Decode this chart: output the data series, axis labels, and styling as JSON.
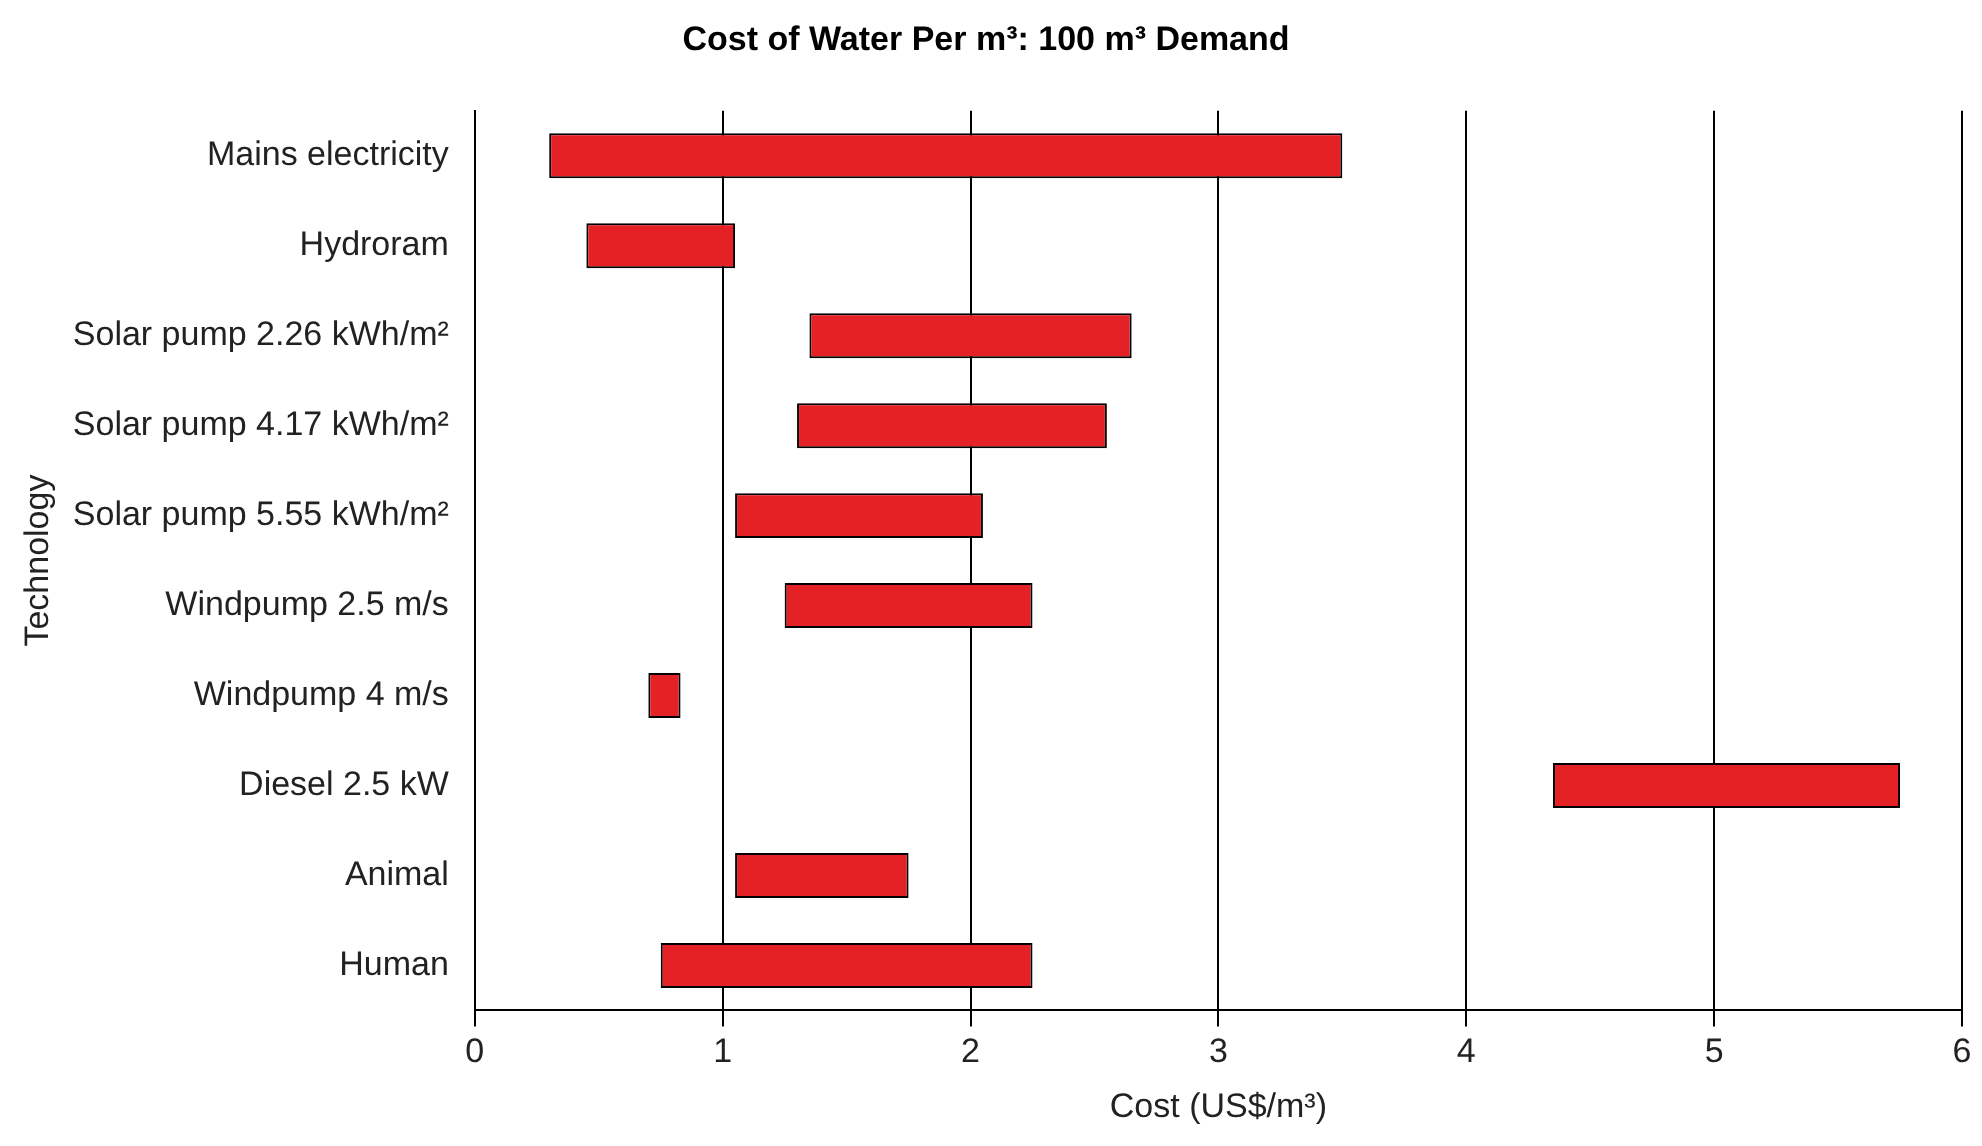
{
  "chart_data": {
    "type": "bar",
    "orientation": "horizontal",
    "title": "Cost of Water Per m³: 100 m³ Demand",
    "xlabel": "Cost (US$/m³)",
    "ylabel": "Technology",
    "categories": [
      "Mains electricity",
      "Hydroram",
      "Solar pump 2.26 kWh/m²",
      "Solar pump 4.17 kWh/m²",
      "Solar pump 5.55 kWh/m²",
      "Windpump 2.5 m/s",
      "Windpump 4 m/s",
      "Diesel 2.5 kW",
      "Animal",
      "Human"
    ],
    "base": [
      0.3,
      0.45,
      1.35,
      1.3,
      1.05,
      1.25,
      0.7,
      4.35,
      1.05,
      0.75
    ],
    "values": [
      3.2,
      0.6,
      1.3,
      1.25,
      1.0,
      1.0,
      0.13,
      1.4,
      0.7,
      1.5
    ],
    "color": "#e42226",
    "xlim": [
      0,
      6
    ],
    "xticks": [
      0,
      1,
      2,
      3,
      4,
      5,
      6
    ],
    "grid": "x",
    "legend": false
  }
}
